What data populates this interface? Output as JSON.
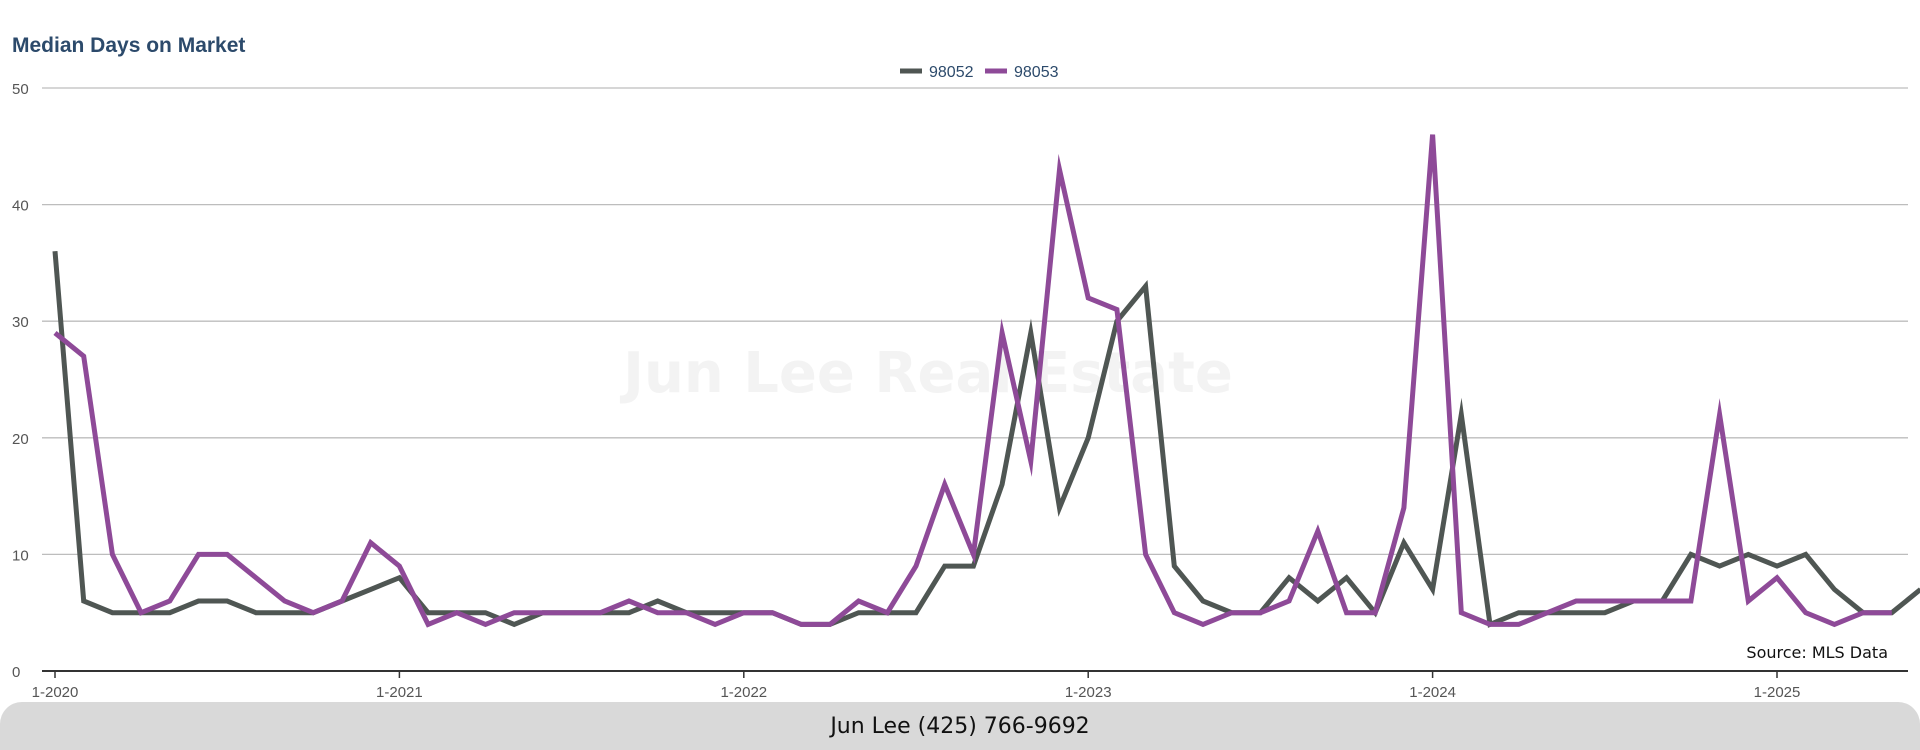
{
  "chart_data": {
    "type": "line",
    "title": "Median Days on Market",
    "xlabel": "",
    "ylabel": "",
    "ylim": [
      0,
      50
    ],
    "yticks": [
      0,
      10,
      20,
      30,
      40,
      50
    ],
    "xticks": [
      "1-2020",
      "1-2021",
      "1-2022",
      "1-2023",
      "1-2024",
      "1-2025"
    ],
    "x_start": "1-2020",
    "x_step": "month",
    "grid": true,
    "legend": "top-center",
    "series": [
      {
        "name": "98052",
        "color": "#4f5653",
        "values": [
          36,
          6,
          5,
          5,
          5,
          6,
          6,
          5,
          5,
          5,
          6,
          7,
          8,
          5,
          5,
          5,
          4,
          5,
          5,
          5,
          5,
          6,
          5,
          5,
          5,
          5,
          4,
          4,
          5,
          5,
          5,
          9,
          9,
          16,
          29,
          14,
          20,
          30,
          33,
          9,
          6,
          5,
          5,
          8,
          6,
          8,
          5,
          11,
          7,
          22,
          4,
          5,
          5,
          5,
          5,
          6,
          6,
          10,
          9,
          10,
          9,
          10,
          7,
          5,
          5,
          7
        ]
      },
      {
        "name": "98053",
        "color": "#8e4a98",
        "values": [
          29,
          27,
          10,
          5,
          6,
          10,
          10,
          8,
          6,
          5,
          6,
          11,
          9,
          4,
          5,
          4,
          5,
          5,
          5,
          5,
          6,
          5,
          5,
          4,
          5,
          5,
          4,
          4,
          6,
          5,
          9,
          16,
          10,
          29,
          18,
          43,
          32,
          31,
          10,
          5,
          4,
          5,
          5,
          6,
          12,
          5,
          5,
          14,
          46,
          5,
          4,
          4,
          5,
          6,
          6,
          6,
          6,
          6,
          22,
          6,
          8,
          5,
          4,
          5,
          5
        ]
      }
    ],
    "annotations": {
      "source": "Source: MLS Data",
      "watermark": "Jun Lee Real Estate"
    }
  },
  "footer": {
    "contact": "Jun Lee (425) 766-9692"
  }
}
